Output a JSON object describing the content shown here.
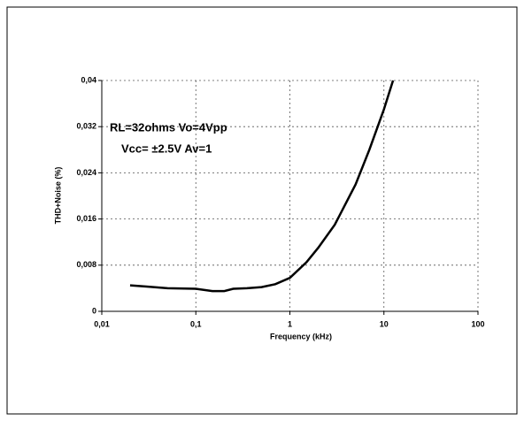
{
  "chart_data": {
    "type": "line",
    "x_label": "Frequency (kHz)",
    "y_label": "THD+Noise (%)",
    "annotations": [
      "RL=32ohms    Vo=4Vpp",
      "Vcc= ±2.5V    Av=1"
    ],
    "xscale": "log",
    "xlim": [
      0.01,
      100
    ],
    "xticks": [
      {
        "value": 0.01,
        "label": "0,01"
      },
      {
        "value": 0.1,
        "label": "0,1"
      },
      1,
      10,
      100
    ],
    "ylim": [
      0,
      0.04
    ],
    "yticks": [
      0,
      {
        "value": 0.008,
        "label": "0,008"
      },
      {
        "value": 0.016,
        "label": "0,016"
      },
      {
        "value": 0.024,
        "label": "0,024"
      },
      {
        "value": 0.032,
        "label": "0,032"
      },
      {
        "value": 0.04,
        "label": "0,04"
      }
    ],
    "grid": true,
    "x": [
      0.02,
      0.03,
      0.05,
      0.1,
      0.15,
      0.2,
      0.25,
      0.35,
      0.5,
      0.7,
      1,
      1.5,
      2,
      3,
      5,
      7,
      10,
      12.5
    ],
    "series": [
      {
        "color": "#000000",
        "values": [
          0.0045,
          0.0043,
          0.004,
          0.0039,
          0.0035,
          0.0035,
          0.0039,
          0.004,
          0.0042,
          0.0047,
          0.0058,
          0.0085,
          0.011,
          0.015,
          0.022,
          0.028,
          0.035,
          0.04
        ]
      }
    ]
  }
}
